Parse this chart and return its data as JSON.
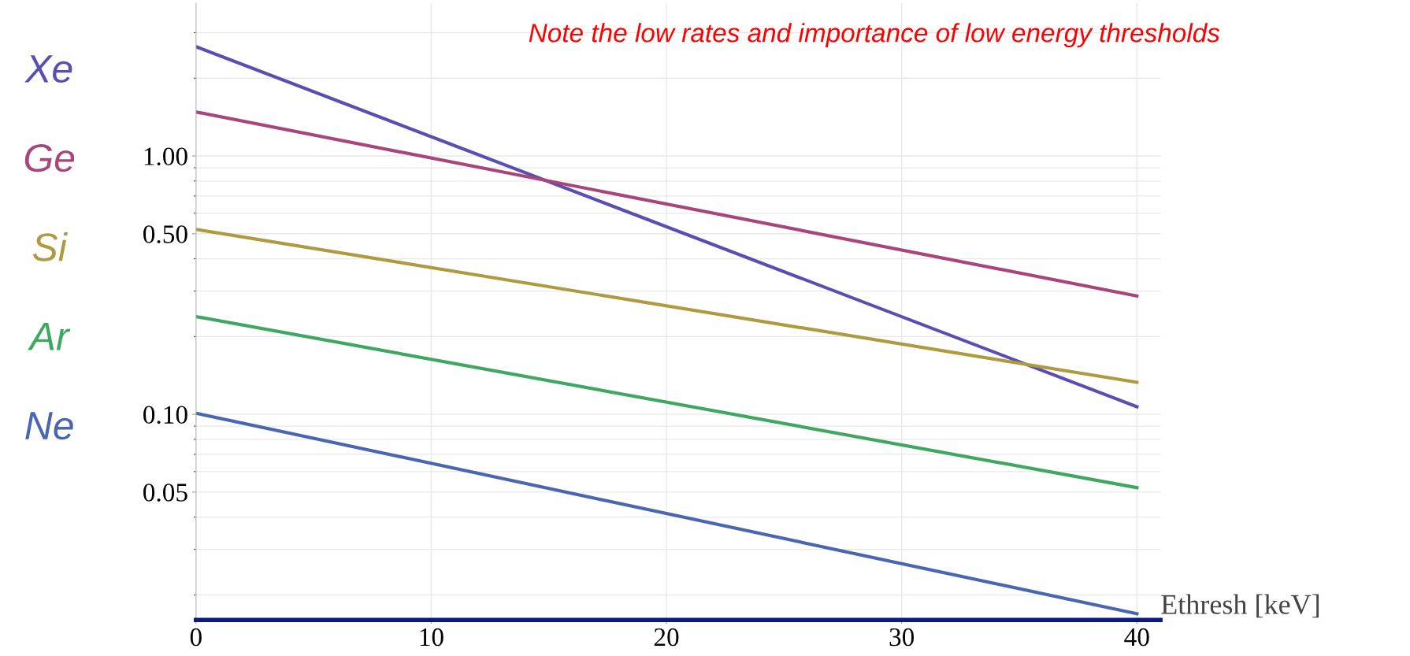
{
  "chart_data": {
    "type": "line",
    "log": "y",
    "xlabel": "Ethresh [keV]",
    "annotations": [
      "Note the low rates and importance of low energy thresholds"
    ],
    "x": [
      0,
      40
    ],
    "xlim": [
      0,
      41
    ],
    "xticks": [
      0,
      10,
      20,
      30,
      40
    ],
    "ylim": [
      0.016,
      3.9
    ],
    "yticks": [
      {
        "value": 0.05,
        "label": "0.05"
      },
      {
        "value": 0.1,
        "label": "0.10"
      },
      {
        "value": 0.5,
        "label": "0.50"
      },
      {
        "value": 1,
        "label": "1.00"
      }
    ],
    "grid": true,
    "marker": "none",
    "line_style": "solid",
    "series": [
      {
        "name": "Xe",
        "color": "#5a4fb0",
        "values": [
          2.65,
          0.107
        ]
      },
      {
        "name": "Ge",
        "color": "#a8457a",
        "values": [
          1.48,
          0.287
        ]
      },
      {
        "name": "Si",
        "color": "#b09a40",
        "values": [
          0.52,
          0.133
        ]
      },
      {
        "name": "Ar",
        "color": "#3fa860",
        "values": [
          0.239,
          0.052
        ]
      },
      {
        "name": "Ne",
        "color": "#4a66b0",
        "values": [
          0.101,
          0.0169
        ]
      }
    ]
  }
}
